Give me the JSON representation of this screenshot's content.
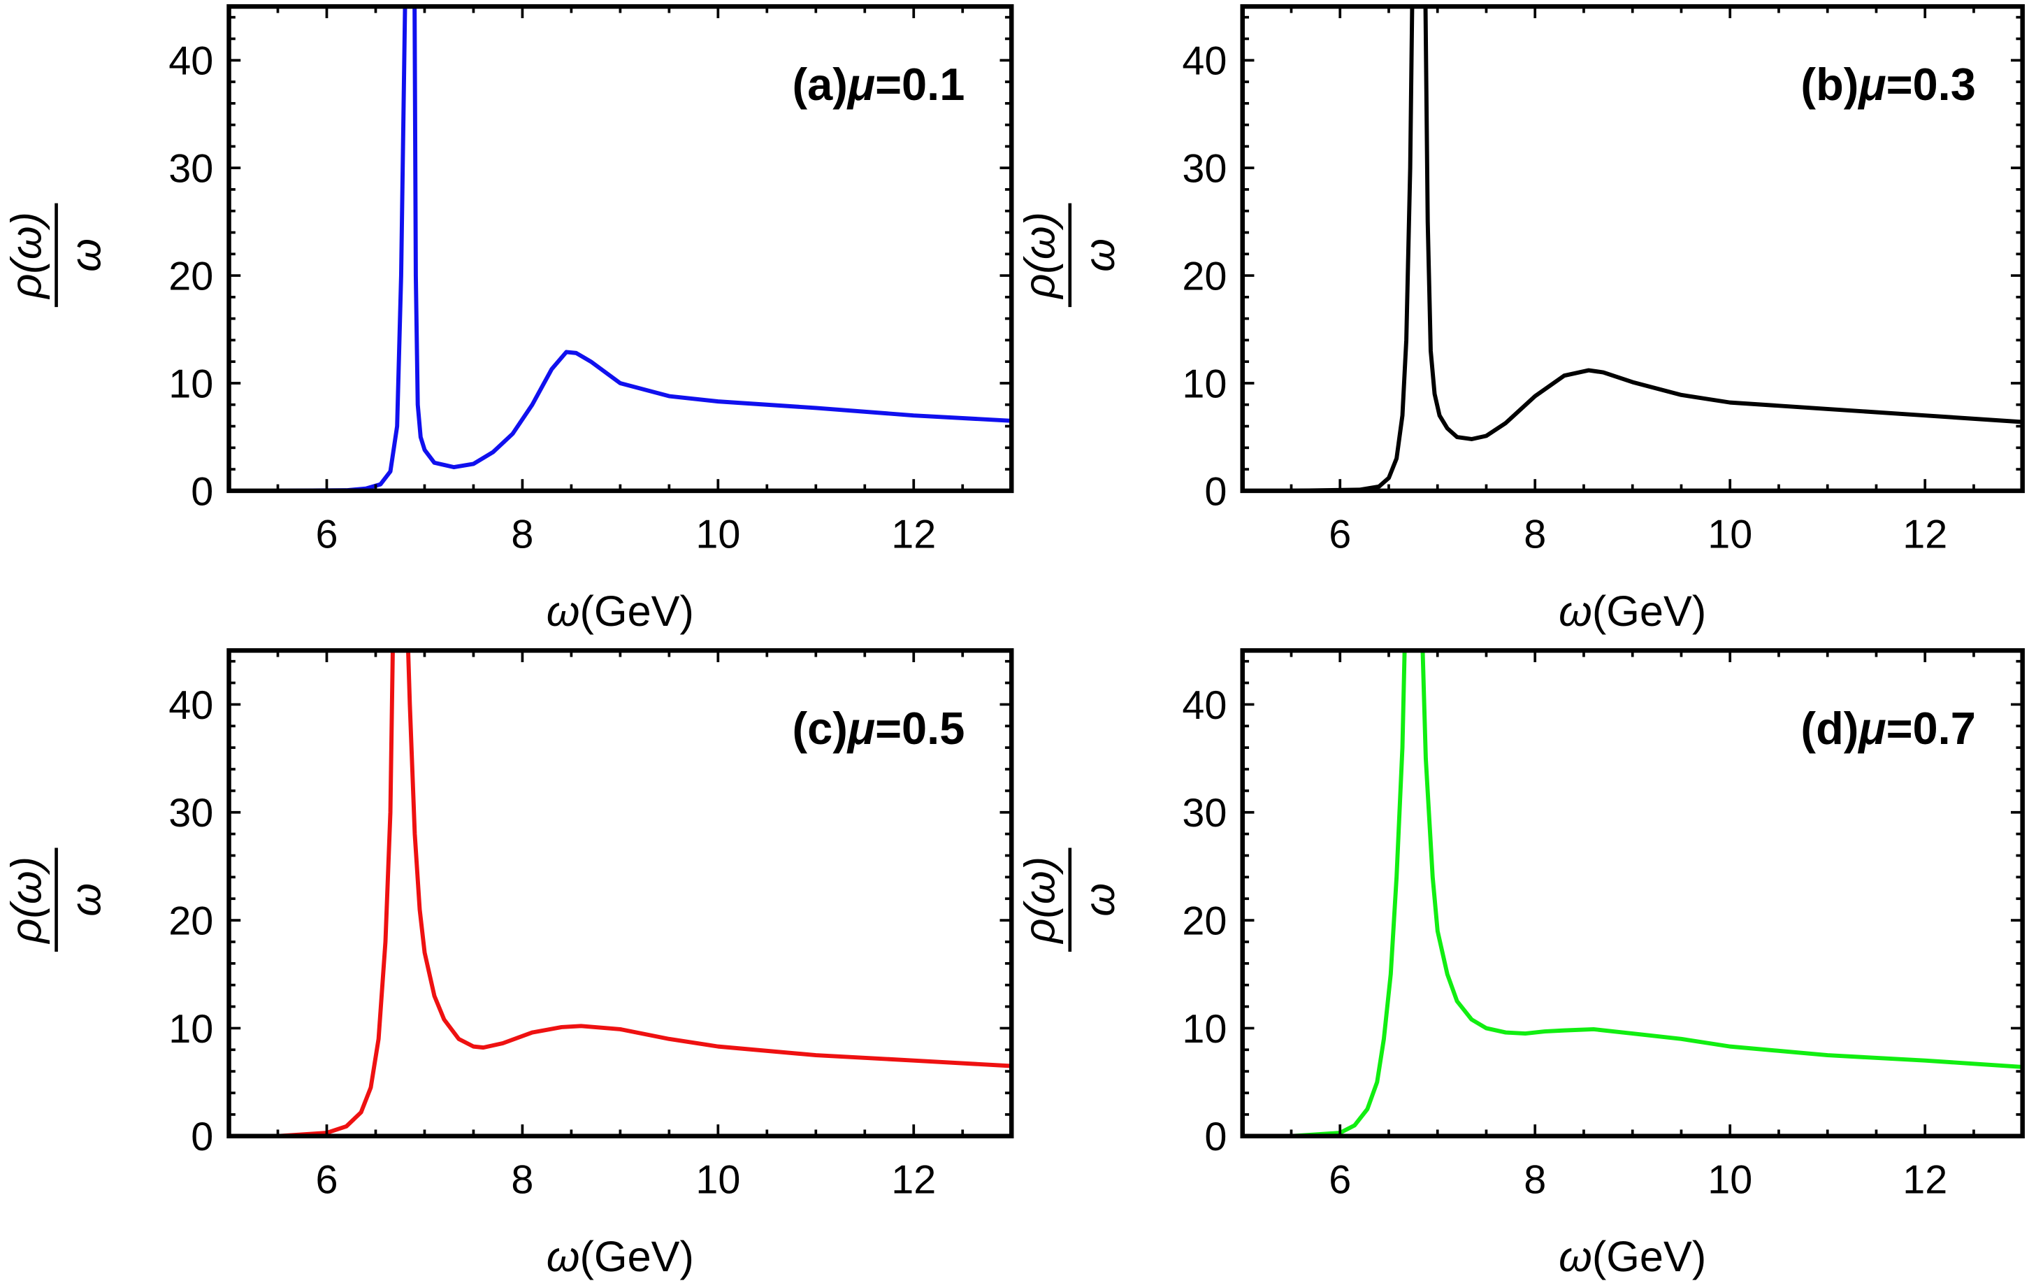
{
  "chart_data": [
    {
      "type": "line",
      "panel_label": "(a)",
      "annotation_prefix": "(a)",
      "annotation_mu": "μ",
      "annotation_value": "=0.1",
      "color": "#1010ee",
      "xlabel_sym": "ω",
      "xlabel_unit": "(GeV)",
      "ylabel_num": "ρ(ω)",
      "ylabel_den": "ω",
      "xlim": [
        5,
        13
      ],
      "ylim": [
        0,
        45
      ],
      "xticks": [
        6,
        8,
        10,
        12
      ],
      "yticks": [
        0,
        10,
        20,
        30,
        40
      ],
      "x": [
        5.5,
        6.2,
        6.4,
        6.55,
        6.65,
        6.72,
        6.76,
        6.8,
        6.83,
        6.89,
        6.91,
        6.93,
        6.96,
        7.0,
        7.1,
        7.3,
        7.5,
        7.7,
        7.9,
        8.1,
        8.3,
        8.45,
        8.55,
        8.7,
        9.0,
        9.5,
        10,
        11,
        12,
        13
      ],
      "y": [
        0,
        0.05,
        0.2,
        0.6,
        1.8,
        6,
        20,
        45,
        60,
        60,
        20,
        8,
        5,
        3.8,
        2.6,
        2.2,
        2.5,
        3.6,
        5.3,
        8,
        11.3,
        12.9,
        12.8,
        12,
        10,
        8.8,
        8.3,
        7.7,
        7.0,
        6.5
      ]
    },
    {
      "type": "line",
      "panel_label": "(b)",
      "annotation_prefix": "(b)",
      "annotation_mu": "μ",
      "annotation_value": "=0.3",
      "color": "#000000",
      "xlabel_sym": "ω",
      "xlabel_unit": "(GeV)",
      "ylabel_num": "ρ(ω)",
      "ylabel_den": "ω",
      "xlim": [
        5,
        13
      ],
      "ylim": [
        0,
        45
      ],
      "xticks": [
        6,
        8,
        10,
        12
      ],
      "yticks": [
        0,
        10,
        20,
        30,
        40
      ],
      "x": [
        5.5,
        6.2,
        6.4,
        6.5,
        6.58,
        6.64,
        6.68,
        6.72,
        6.76,
        6.86,
        6.9,
        6.93,
        6.97,
        7.02,
        7.1,
        7.2,
        7.35,
        7.5,
        7.7,
        8.0,
        8.3,
        8.55,
        8.7,
        9.0,
        9.5,
        10,
        11,
        12,
        13
      ],
      "y": [
        0,
        0.1,
        0.4,
        1.2,
        3,
        7,
        14,
        30,
        60,
        60,
        25,
        13,
        9,
        7,
        5.8,
        5,
        4.8,
        5.1,
        6.3,
        8.8,
        10.7,
        11.2,
        11,
        10.1,
        8.9,
        8.2,
        7.6,
        7.0,
        6.4
      ]
    },
    {
      "type": "line",
      "panel_label": "(c)",
      "annotation_prefix": "(c)",
      "annotation_mu": "μ",
      "annotation_value": "=0.5",
      "color": "#ee1111",
      "xlabel_sym": "ω",
      "xlabel_unit": "(GeV)",
      "ylabel_num": "ρ(ω)",
      "ylabel_den": "ω",
      "xlim": [
        5,
        13
      ],
      "ylim": [
        0,
        45
      ],
      "xticks": [
        6,
        8,
        10,
        12
      ],
      "yticks": [
        0,
        10,
        20,
        30,
        40
      ],
      "x": [
        5.5,
        6.0,
        6.2,
        6.35,
        6.45,
        6.53,
        6.6,
        6.65,
        6.7,
        6.78,
        6.85,
        6.9,
        6.95,
        7.0,
        7.1,
        7.2,
        7.35,
        7.5,
        7.6,
        7.8,
        8.1,
        8.4,
        8.6,
        9.0,
        9.5,
        10,
        11,
        12,
        13
      ],
      "y": [
        0,
        0.3,
        0.9,
        2.2,
        4.5,
        9,
        18,
        30,
        60,
        60,
        40,
        28,
        21,
        17,
        13,
        10.8,
        9,
        8.3,
        8.2,
        8.6,
        9.6,
        10.1,
        10.2,
        9.9,
        9.0,
        8.3,
        7.5,
        7.0,
        6.5
      ]
    },
    {
      "type": "line",
      "panel_label": "(d)",
      "annotation_prefix": "(d)",
      "annotation_mu": "μ",
      "annotation_value": "=0.7",
      "color": "#11ee11",
      "xlabel_sym": "ω",
      "xlabel_unit": "(GeV)",
      "ylabel_num": "ρ(ω)",
      "ylabel_den": "ω",
      "xlim": [
        5,
        13
      ],
      "ylim": [
        0,
        45
      ],
      "xticks": [
        6,
        8,
        10,
        12
      ],
      "yticks": [
        0,
        10,
        20,
        30,
        40
      ],
      "x": [
        5.5,
        6.0,
        6.15,
        6.28,
        6.38,
        6.45,
        6.52,
        6.58,
        6.64,
        6.7,
        6.8,
        6.88,
        6.95,
        7.0,
        7.1,
        7.2,
        7.35,
        7.5,
        7.7,
        7.9,
        8.1,
        8.3,
        8.6,
        9.0,
        9.5,
        10,
        11,
        12,
        13
      ],
      "y": [
        0,
        0.3,
        1,
        2.5,
        5,
        9,
        15,
        24,
        36,
        60,
        60,
        35,
        24,
        19,
        15,
        12.5,
        10.8,
        10,
        9.6,
        9.5,
        9.7,
        9.8,
        9.9,
        9.5,
        9.0,
        8.3,
        7.5,
        7.0,
        6.4
      ]
    }
  ]
}
